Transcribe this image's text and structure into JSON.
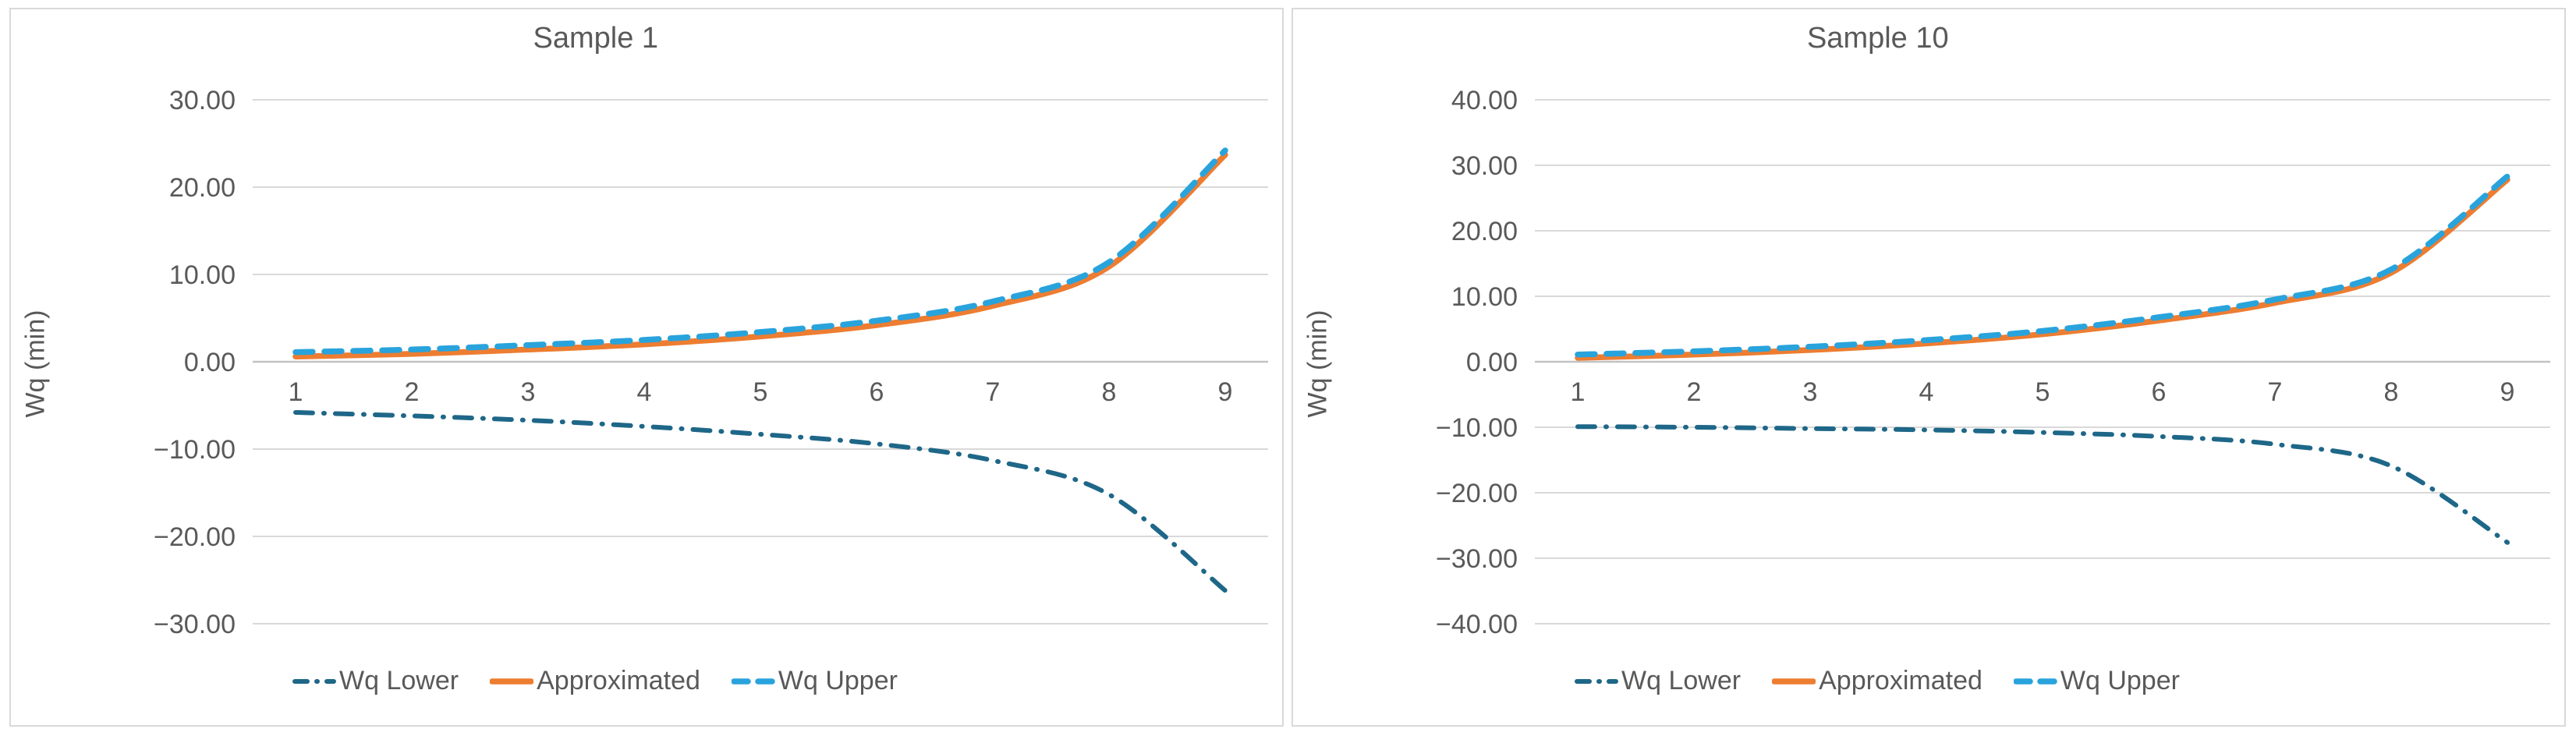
{
  "colors": {
    "background": "#FFFFFF",
    "panel_border": "#D9D9D9",
    "gridline": "#D9D9D9",
    "zero_line": "#C2C2C2",
    "text": "#595959",
    "wq_lower": "#1E6788",
    "approximated": "#ED7D31",
    "wq_upper": "#29A3DC"
  },
  "chart_data": [
    {
      "type": "line",
      "title": "Sample 1",
      "xlabel": "",
      "ylabel": "Wq (min)",
      "x": [
        1,
        2,
        3,
        4,
        5,
        6,
        7,
        8,
        9
      ],
      "x_tick_labels": [
        "1",
        "2",
        "3",
        "4",
        "5",
        "6",
        "7",
        "8",
        "9"
      ],
      "ylim": [
        -30,
        30
      ],
      "ytick_step": 10,
      "ytick_labels": [
        "30.00",
        "20.00",
        "10.00",
        "0.00",
        "−10.00",
        "−20.00",
        "−30.00"
      ],
      "grid": true,
      "legend_position": "bottom",
      "series": [
        {
          "name": "Wq Lower",
          "style": "dash-dot",
          "color_key": "wq_lower",
          "values": [
            -5.8,
            -6.2,
            -6.7,
            -7.4,
            -8.3,
            -9.4,
            -11.3,
            -15.2,
            -26.2
          ]
        },
        {
          "name": "Approximated",
          "style": "solid",
          "color_key": "approximated",
          "values": [
            0.6,
            0.9,
            1.4,
            2.0,
            2.9,
            4.2,
            6.4,
            10.9,
            23.7
          ]
        },
        {
          "name": "Wq Upper",
          "style": "dashed",
          "color_key": "wq_upper",
          "values": [
            1.1,
            1.4,
            1.9,
            2.5,
            3.4,
            4.7,
            6.9,
            11.4,
            24.2
          ]
        }
      ]
    },
    {
      "type": "line",
      "title": "Sample 10",
      "xlabel": "",
      "ylabel": "Wq (min)",
      "x": [
        1,
        2,
        3,
        4,
        5,
        6,
        7,
        8,
        9
      ],
      "x_tick_labels": [
        "1",
        "2",
        "3",
        "4",
        "5",
        "6",
        "7",
        "8",
        "9"
      ],
      "ylim": [
        -40,
        40
      ],
      "ytick_step": 10,
      "ytick_labels": [
        "40.00",
        "30.00",
        "20.00",
        "10.00",
        "0.00",
        "−10.00",
        "−20.00",
        "−30.00",
        "−40.00"
      ],
      "grid": true,
      "legend_position": "bottom",
      "series": [
        {
          "name": "Wq Lower",
          "style": "dash-dot",
          "color_key": "wq_lower",
          "values": [
            -9.9,
            -10.0,
            -10.2,
            -10.4,
            -10.8,
            -11.4,
            -12.6,
            -15.9,
            -27.6
          ]
        },
        {
          "name": "Approximated",
          "style": "solid",
          "color_key": "approximated",
          "values": [
            0.6,
            1.1,
            1.8,
            2.8,
            4.2,
            6.3,
            9.0,
            13.6,
            27.8
          ]
        },
        {
          "name": "Wq Upper",
          "style": "dashed",
          "color_key": "wq_upper",
          "values": [
            1.1,
            1.6,
            2.3,
            3.3,
            4.7,
            6.8,
            9.5,
            14.1,
            28.3
          ]
        }
      ]
    }
  ]
}
